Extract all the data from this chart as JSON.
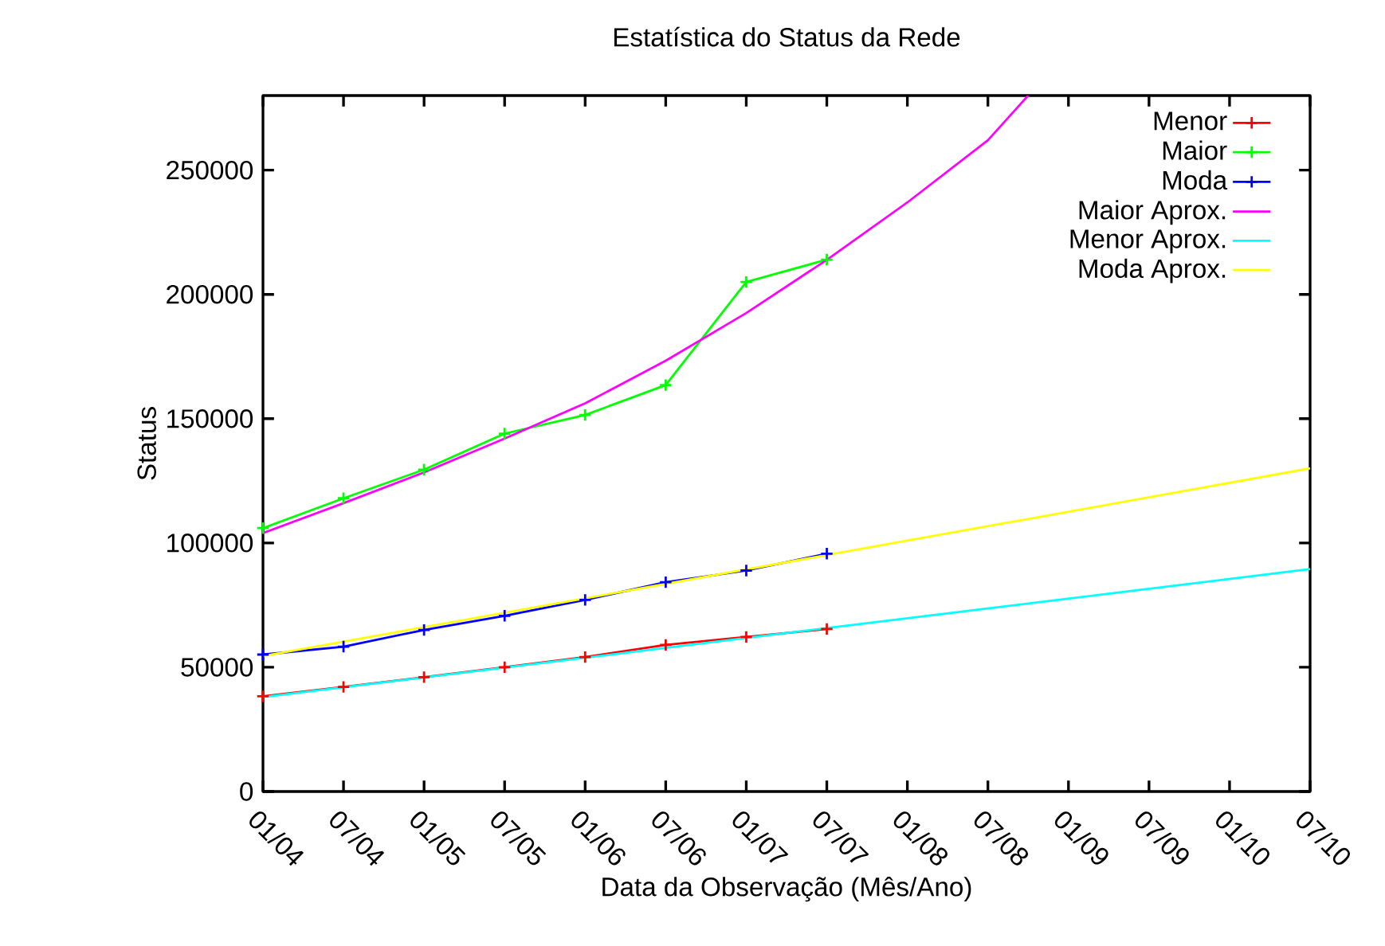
{
  "chart_data": {
    "type": "line",
    "title": "Estatística do Status da Rede",
    "xlabel": "Data da Observação (Mês/Ano)",
    "ylabel": "Status",
    "x": [
      "2004-01",
      "2004-07",
      "2005-01",
      "2005-07",
      "2006-01",
      "2006-07",
      "2007-01",
      "2007-07"
    ],
    "series": [
      {
        "name": "Menor",
        "color": "#ff0000",
        "marker": "cross",
        "values": [
          38300,
          42100,
          46000,
          50000,
          54100,
          59000,
          62200,
          65400
        ]
      },
      {
        "name": "Maior",
        "color": "#00ff00",
        "marker": "cross",
        "values": [
          106000,
          118000,
          129500,
          144000,
          151500,
          163500,
          205000,
          214000
        ]
      },
      {
        "name": "Moda",
        "color": "#0000ff",
        "marker": "cross",
        "values": [
          55100,
          58300,
          65000,
          70700,
          77100,
          84200,
          88900,
          95700
        ]
      },
      {
        "name": "Maior Aprox.",
        "color": "#ff00ff",
        "marker": "none",
        "x": [
          "2004-01",
          "2004-07",
          "2005-01",
          "2005-07",
          "2006-01",
          "2006-07",
          "2007-01",
          "2007-07",
          "2008-01",
          "2008-07",
          "2008-10"
        ],
        "values": [
          104000,
          116000,
          128400,
          142000,
          156200,
          173300,
          192500,
          213900,
          237000,
          262000,
          280000
        ]
      },
      {
        "name": "Menor Aprox.",
        "color": "#00ffff",
        "marker": "none",
        "x": [
          "2004-01",
          "2010-07"
        ],
        "values": [
          38000,
          89500
        ]
      },
      {
        "name": "Moda Aprox.",
        "color": "#ffff00",
        "marker": "none",
        "x": [
          "2004-01",
          "2010-07"
        ],
        "values": [
          54500,
          130000
        ]
      }
    ],
    "xlim": [
      "2004-01",
      "2010-07"
    ],
    "xticks": [
      {
        "value": "2004-01",
        "label": "01/04"
      },
      {
        "value": "2004-07",
        "label": "07/04"
      },
      {
        "value": "2005-01",
        "label": "01/05"
      },
      {
        "value": "2005-07",
        "label": "07/05"
      },
      {
        "value": "2006-01",
        "label": "01/06"
      },
      {
        "value": "2006-07",
        "label": "07/06"
      },
      {
        "value": "2007-01",
        "label": "01/07"
      },
      {
        "value": "2007-07",
        "label": "07/07"
      },
      {
        "value": "2008-01",
        "label": "01/08"
      },
      {
        "value": "2008-07",
        "label": "07/08"
      },
      {
        "value": "2009-01",
        "label": "01/09"
      },
      {
        "value": "2009-07",
        "label": "07/09"
      },
      {
        "value": "2010-01",
        "label": "01/10"
      },
      {
        "value": "2010-07",
        "label": "07/10"
      }
    ],
    "ylim": [
      0,
      280000
    ],
    "yticks": [
      0,
      50000,
      100000,
      150000,
      200000,
      250000
    ],
    "legend": "top right",
    "grid": false
  }
}
